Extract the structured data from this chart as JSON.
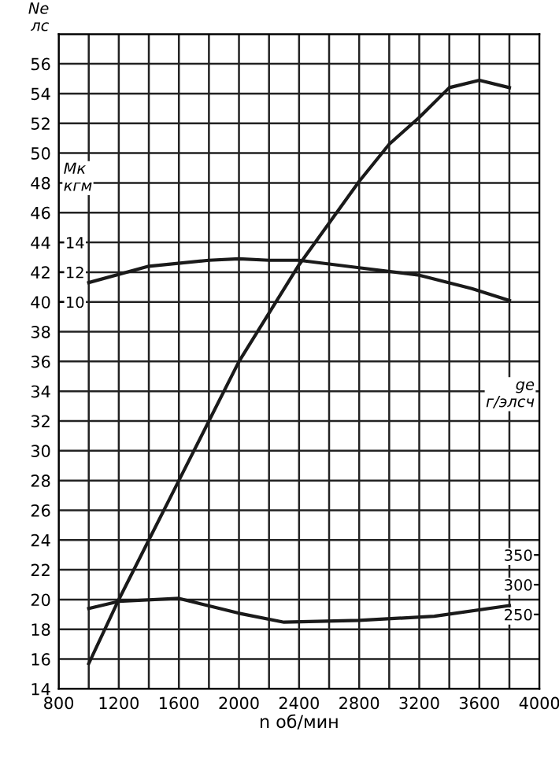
{
  "chart_data": {
    "type": "line",
    "xlabel": "n об/мин",
    "ylabel": "Ne\nлс",
    "y2label": "ge\nг/элсч",
    "y3label": "Mк\nкгм",
    "xlim": [
      800,
      4000
    ],
    "xticks": [
      800,
      {
        "value": 1000,
        "label": null
      },
      1200,
      {
        "value": 1400,
        "label": null
      },
      1600,
      {
        "value": 1800,
        "label": null
      },
      2000,
      {
        "value": 2200,
        "label": null
      },
      2400,
      {
        "value": 2600,
        "label": null
      },
      2800,
      {
        "value": 3000,
        "label": null
      },
      3200,
      {
        "value": 3400,
        "label": null
      },
      3600,
      {
        "value": 3800,
        "label": null
      },
      4000
    ],
    "ylim": [
      14,
      58
    ],
    "yticks": [
      14,
      16,
      18,
      20,
      22,
      24,
      26,
      28,
      30,
      32,
      34,
      36,
      38,
      40,
      42,
      44,
      46,
      48,
      50,
      52,
      54,
      56,
      {
        "value": 58,
        "label": null
      }
    ],
    "y2lim": [
      125,
      1225
    ],
    "y2ticks": [
      250,
      300,
      350
    ],
    "y3lim": [
      -16,
      28
    ],
    "y3ticks": [
      10,
      12,
      14
    ],
    "grid": true,
    "marker": "none",
    "line_style": "solid",
    "series": [
      {
        "color": "#1a1a1a",
        "x": [
          1000,
          1200,
          1400,
          1600,
          1800,
          2000,
          2400,
          2800,
          3000,
          3200,
          3400,
          3600,
          3800
        ],
        "values": [
          15.7,
          20,
          24,
          28,
          32,
          36,
          42.5,
          48.1,
          50.6,
          52.4,
          54.4,
          54.9,
          54.4
        ]
      },
      {
        "color": "#1a1a1a",
        "axis": "y3",
        "x": [
          1000,
          1400,
          1800,
          2000,
          2200,
          2400,
          2800,
          3200,
          3550,
          3800
        ],
        "values": [
          11.3,
          12.4,
          12.8,
          12.9,
          12.8,
          12.8,
          12.3,
          11.8,
          10.9,
          10.1
        ]
      },
      {
        "color": "#1a1a1a",
        "axis": "y2",
        "x": [
          1000,
          1200,
          1600,
          2000,
          2300,
          2800,
          3300,
          3800
        ],
        "values": [
          260,
          272,
          277,
          252,
          237,
          240,
          247,
          265
        ]
      }
    ]
  }
}
